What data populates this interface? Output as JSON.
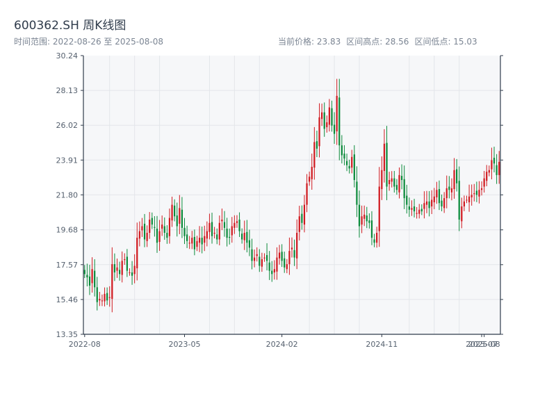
{
  "header": {
    "title": "600362.SH 周K线图",
    "range_label": "时间范围: 2022-08-26 至 2025-08-08",
    "current_price": "当前价格: 23.83",
    "range_high": "区间高点: 28.56",
    "range_low": "区间低点: 15.03"
  },
  "colors": {
    "up": "#d0191f",
    "down": "#0b8a3a",
    "grid": "#e3e6ea",
    "plot_bg": "#f6f7f9",
    "axis": "#2f3b4b"
  },
  "chart_data": {
    "type": "candlestick",
    "x_ticks": [
      "2022-08",
      "2023-05",
      "2024-02",
      "2024-11",
      "2025-07",
      "2025-08"
    ],
    "y_ticks": [
      "13.35",
      "15.46",
      "17.57",
      "19.68",
      "21.80",
      "23.91",
      "26.02",
      "28.13",
      "30.24"
    ],
    "ylim": [
      13.35,
      30.24
    ],
    "grid": true,
    "close_series": [
      17.0,
      16.8,
      16.3,
      17.3,
      16.2,
      15.3,
      15.5,
      15.4,
      15.8,
      15.4,
      15.6,
      17.6,
      17.1,
      17.4,
      17.0,
      17.8,
      17.9,
      17.2,
      17.1,
      16.9,
      17.5,
      19.2,
      19.6,
      19.9,
      19.1,
      19.5,
      20.3,
      20.0,
      19.8,
      18.9,
      19.6,
      20.0,
      19.5,
      19.2,
      20.4,
      21.2,
      20.5,
      19.9,
      21.0,
      19.8,
      19.3,
      19.0,
      18.9,
      19.2,
      18.5,
      19.0,
      19.2,
      18.8,
      19.3,
      19.6,
      20.1,
      19.3,
      19.5,
      19.1,
      20.1,
      20.3,
      19.8,
      19.2,
      19.2,
      19.9,
      20.1,
      20.2,
      19.6,
      19.1,
      19.5,
      18.9,
      18.6,
      17.8,
      18.0,
      18.2,
      17.5,
      17.9,
      18.0,
      17.8,
      17.2,
      17.0,
      17.3,
      18.0,
      18.3,
      17.8,
      17.4,
      17.6,
      18.4,
      18.6,
      18.0,
      19.5,
      20.5,
      20.1,
      21.2,
      22.5,
      22.9,
      23.5,
      25.0,
      24.6,
      26.5,
      26.8,
      25.8,
      26.2,
      27.1,
      26.0,
      25.5,
      27.8,
      24.8,
      24.2,
      24.0,
      23.6,
      23.4,
      24.1,
      22.7,
      21.2,
      19.9,
      20.5,
      20.6,
      20.2,
      20.1,
      19.2,
      18.9,
      19.5,
      22.3,
      23.3,
      24.9,
      22.3,
      22.7,
      22.8,
      22.3,
      22.1,
      23.0,
      22.7,
      21.6,
      21.2,
      20.9,
      21.0,
      20.8,
      20.7,
      20.9,
      20.8,
      21.3,
      21.4,
      21.0,
      21.5,
      21.7,
      22.1,
      21.3,
      21.1,
      21.6,
      22.2,
      22.1,
      22.2,
      23.3,
      22.5,
      20.3,
      21.1,
      21.4,
      21.5,
      21.7,
      21.8,
      21.9,
      21.8,
      22.1,
      22.2,
      22.8,
      23.2,
      23.3,
      23.9,
      23.7,
      23.0,
      23.8
    ]
  }
}
